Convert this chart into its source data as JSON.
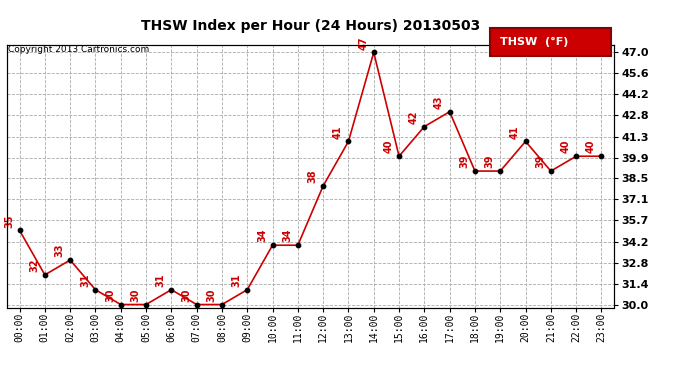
{
  "title": "THSW Index per Hour (24 Hours) 20130503",
  "copyright": "Copyright 2013 Cartronics.com",
  "legend_label": "THSW  (°F)",
  "hours": [
    "00:00",
    "01:00",
    "02:00",
    "03:00",
    "04:00",
    "05:00",
    "06:00",
    "07:00",
    "08:00",
    "09:00",
    "10:00",
    "11:00",
    "12:00",
    "13:00",
    "14:00",
    "15:00",
    "16:00",
    "17:00",
    "18:00",
    "19:00",
    "20:00",
    "21:00",
    "22:00",
    "23:00"
  ],
  "values": [
    35,
    32,
    33,
    31,
    30,
    30,
    31,
    30,
    30,
    31,
    34,
    34,
    38,
    41,
    47,
    40,
    42,
    43,
    39,
    39,
    41,
    39,
    40,
    40
  ],
  "ylim_min": 30.0,
  "ylim_max": 47.0,
  "yticks": [
    30.0,
    31.4,
    32.8,
    34.2,
    35.7,
    37.1,
    38.5,
    39.9,
    41.3,
    42.8,
    44.2,
    45.6,
    47.0
  ],
  "line_color": "#cc0000",
  "marker_color": "#000000",
  "label_color": "#cc0000",
  "bg_color": "#ffffff",
  "grid_color": "#aaaaaa",
  "title_color": "#000000",
  "legend_bg": "#cc0000",
  "legend_text_color": "#ffffff"
}
